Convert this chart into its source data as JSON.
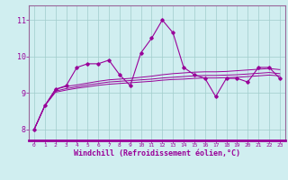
{
  "xlabel": "Windchill (Refroidissement éolien,°C)",
  "background_color": "#d0eef0",
  "grid_color": "#a0cccc",
  "line_color": "#990099",
  "spine_color": "#996699",
  "xlim": [
    -0.5,
    23.5
  ],
  "ylim": [
    7.7,
    11.4
  ],
  "yticks": [
    8,
    9,
    10,
    11
  ],
  "xticks": [
    0,
    1,
    2,
    3,
    4,
    5,
    6,
    7,
    8,
    9,
    10,
    11,
    12,
    13,
    14,
    15,
    16,
    17,
    18,
    19,
    20,
    21,
    22,
    23
  ],
  "series_main": [
    8.0,
    8.65,
    9.1,
    9.2,
    9.7,
    9.8,
    9.8,
    9.9,
    9.5,
    9.2,
    10.1,
    10.5,
    11.0,
    10.65,
    9.7,
    9.5,
    9.4,
    8.9,
    9.4,
    9.4,
    9.3,
    9.7,
    9.7,
    9.4
  ],
  "series_smooth": [
    [
      8.0,
      8.65,
      9.1,
      9.18,
      9.22,
      9.27,
      9.32,
      9.36,
      9.38,
      9.4,
      9.43,
      9.46,
      9.5,
      9.53,
      9.55,
      9.57,
      9.58,
      9.58,
      9.59,
      9.61,
      9.63,
      9.65,
      9.67,
      9.64
    ],
    [
      8.0,
      8.65,
      9.05,
      9.12,
      9.17,
      9.22,
      9.26,
      9.3,
      9.32,
      9.34,
      9.36,
      9.38,
      9.41,
      9.43,
      9.45,
      9.47,
      9.48,
      9.48,
      9.49,
      9.5,
      9.52,
      9.54,
      9.56,
      9.53
    ],
    [
      8.0,
      8.65,
      9.02,
      9.08,
      9.13,
      9.17,
      9.21,
      9.24,
      9.26,
      9.28,
      9.3,
      9.32,
      9.35,
      9.37,
      9.38,
      9.4,
      9.41,
      9.41,
      9.42,
      9.43,
      9.45,
      9.47,
      9.49,
      9.47
    ]
  ]
}
